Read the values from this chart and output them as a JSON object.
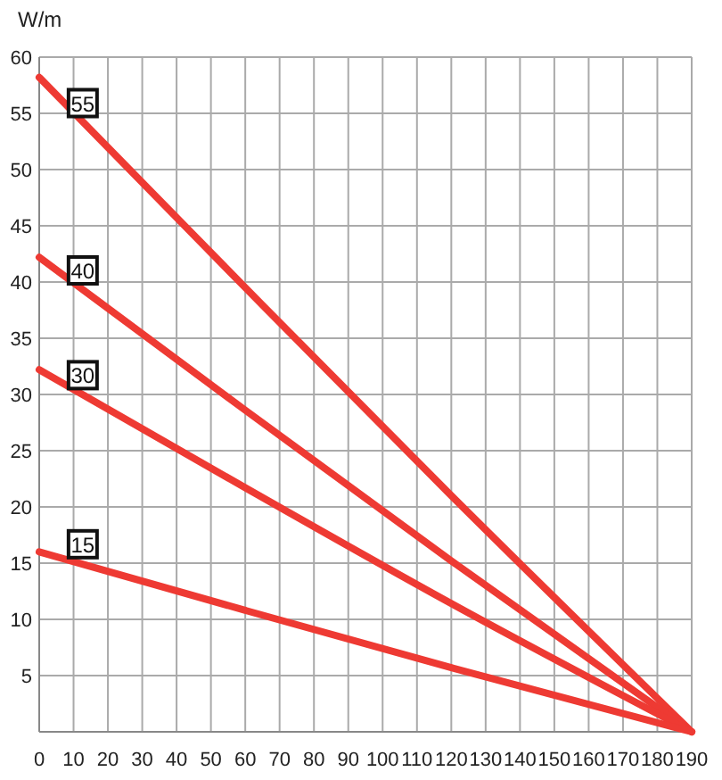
{
  "chart_data": {
    "type": "line",
    "ylabel": "W/m",
    "x": [
      0,
      60,
      120,
      190
    ],
    "series": [
      {
        "name": "55",
        "color": "#ee3a33",
        "values": [
          58.2,
          39.5,
          21,
          0
        ]
      },
      {
        "name": "40",
        "color": "#ee3a33",
        "values": [
          42.2,
          28.6,
          15.2,
          0
        ]
      },
      {
        "name": "30",
        "color": "#ee3a33",
        "values": [
          32.2,
          21.7,
          11.4,
          0
        ]
      },
      {
        "name": "15",
        "color": "#ee3a33",
        "values": [
          16,
          10.8,
          5.7,
          0
        ]
      }
    ],
    "xlim": [
      0,
      190
    ],
    "xticks": [
      0,
      10,
      20,
      30,
      40,
      50,
      60,
      70,
      80,
      90,
      100,
      110,
      120,
      130,
      140,
      150,
      160,
      170,
      180,
      190
    ],
    "ylim": [
      0,
      60
    ],
    "yticks": [
      5,
      10,
      15,
      20,
      25,
      30,
      35,
      40,
      45,
      50,
      55,
      60
    ],
    "grid": true,
    "marker": "none",
    "line_style": "solid"
  }
}
